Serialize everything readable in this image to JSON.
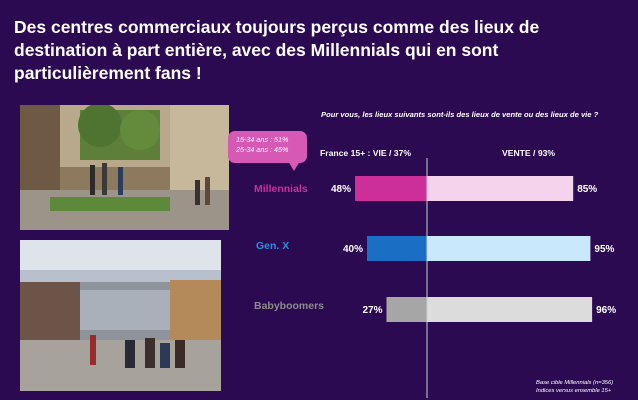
{
  "title": "Des centres commerciaux toujours perçus comme des lieux de destination à part entière, avec des Millennials qui en sont particulièrement fans !",
  "question": "Pour vous, les lieux suivants sont-ils des lieux de vente ou des lieux de vie ?",
  "left_header": "France 15+ : VIE / 37%",
  "right_header": "VENTE / 93%",
  "callout": {
    "line1": "15-34 ans : 51%",
    "line2": "25-34 ans : 45%"
  },
  "footnote": {
    "line1": "Base cible Millennials (n=356)",
    "line2": "Indices versus ensemble 15+"
  },
  "colors": {
    "background": "#2b0a52",
    "millennials_vie": "#cc2e9a",
    "millennials_vente": "#f5d3ec",
    "genx_vie": "#1a6ec4",
    "genx_vente": "#c9e8fb",
    "babyboomers_vie": "#a6a6a6",
    "babyboomers_vente": "#dcdcdc",
    "millennials_label": "#cc2e9a",
    "genx_label": "#2c8fe0",
    "babyboomers_label": "#8c8c8c"
  },
  "chart_data": {
    "type": "bar",
    "orientation": "horizontal",
    "categories": [
      "Millennials",
      "Gen. X",
      "Babyboomers"
    ],
    "series": [
      {
        "name": "VIE",
        "values": [
          48,
          40,
          27
        ]
      },
      {
        "name": "VENTE",
        "values": [
          85,
          95,
          96
        ]
      }
    ],
    "value_labels": {
      "VIE": [
        "48%",
        "40%",
        "27%"
      ],
      "VENTE": [
        "85%",
        "95%",
        "96%"
      ]
    },
    "unit": "%"
  }
}
